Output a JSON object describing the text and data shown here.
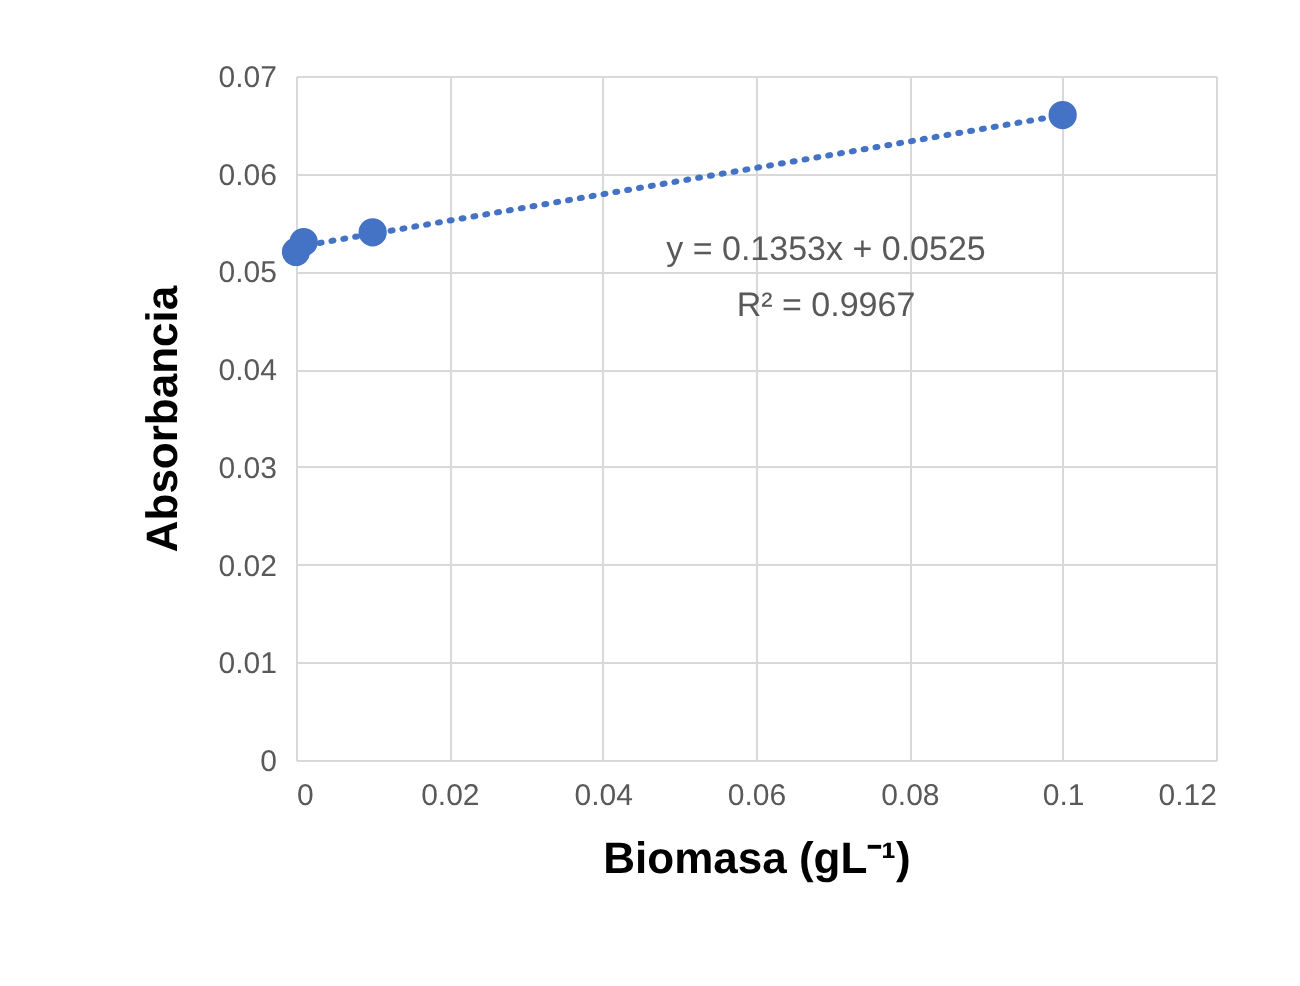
{
  "chart_data": {
    "type": "scatter",
    "xlabel": "Biomasa (gL⁻¹)",
    "ylabel": "Absorbancia",
    "xlim": [
      0,
      0.12
    ],
    "xticks": [
      0,
      0.02,
      0.04,
      0.06,
      0.08,
      0.1,
      0.12
    ],
    "ylim": [
      0,
      0.07
    ],
    "yticks": [
      0,
      0.01,
      0.02,
      0.03,
      0.04,
      0.05,
      0.06,
      0.07
    ],
    "grid": true,
    "series": [
      {
        "color": "#4472c4",
        "marker": "circle",
        "x": [
          0,
          0.001,
          0.01,
          0.1
        ],
        "values": [
          0.052,
          0.053,
          0.054,
          0.066
        ]
      },
      {
        "type": "line",
        "color": "#4472c4",
        "line_style": "dotted",
        "x": [
          0,
          0.1
        ],
        "values": [
          0.0525,
          0.066
        ]
      }
    ],
    "annotations": [
      "y = 0.1353x + 0.0525",
      "R² = 0.9967"
    ]
  }
}
